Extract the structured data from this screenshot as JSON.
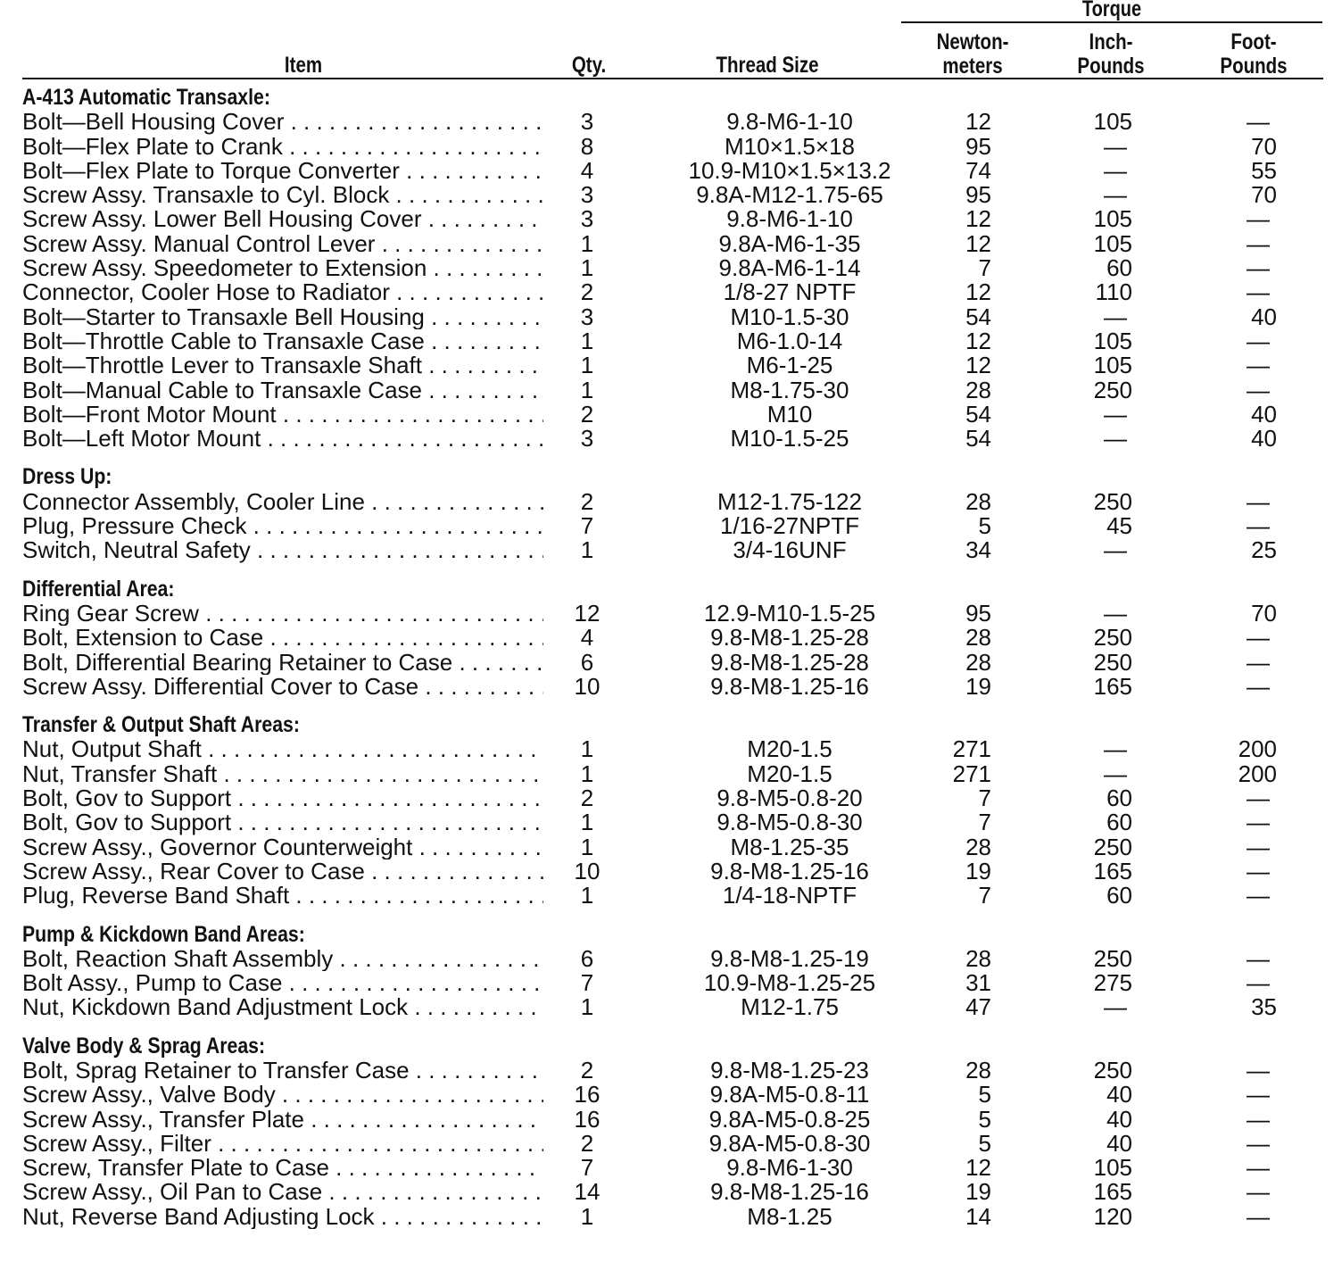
{
  "header": {
    "torque": "Torque",
    "item": "Item",
    "qty": "Qty.",
    "thread": "Thread Size",
    "nm": [
      "Newton-",
      "meters"
    ],
    "in": [
      "Inch-",
      "Pounds"
    ],
    "ft": [
      "Foot-",
      "Pounds"
    ]
  },
  "sections": [
    {
      "title": "A-413 Automatic Transaxle:",
      "rows": [
        [
          "Bolt—Bell Housing Cover",
          "3",
          "9.8-M6-1-10",
          "12",
          "105",
          "—"
        ],
        [
          "Bolt—Flex Plate to Crank",
          "8",
          "M10×1.5×18",
          "95",
          "—",
          "70"
        ],
        [
          "Bolt—Flex Plate to Torque Converter",
          "4",
          "10.9-M10×1.5×13.2",
          "74",
          "—",
          "55"
        ],
        [
          "Screw Assy. Transaxle to Cyl. Block",
          "3",
          "9.8A-M12-1.75-65",
          "95",
          "—",
          "70"
        ],
        [
          "Screw Assy. Lower Bell Housing Cover",
          "3",
          "9.8-M6-1-10",
          "12",
          "105",
          "—"
        ],
        [
          "Screw Assy. Manual Control Lever",
          "1",
          "9.8A-M6-1-35",
          "12",
          "105",
          "—"
        ],
        [
          "Screw Assy. Speedometer to Extension",
          "1",
          "9.8A-M6-1-14",
          "7",
          "60",
          "—"
        ],
        [
          "Connector, Cooler Hose to Radiator",
          "2",
          "1/8-27 NPTF",
          "12",
          "110",
          "—"
        ],
        [
          "Bolt—Starter to Transaxle Bell Housing",
          "3",
          "M10-1.5-30",
          "54",
          "—",
          "40"
        ],
        [
          "Bolt—Throttle Cable to Transaxle Case",
          "1",
          "M6-1.0-14",
          "12",
          "105",
          "—"
        ],
        [
          "Bolt—Throttle Lever to Transaxle Shaft",
          "1",
          "M6-1-25",
          "12",
          "105",
          "—"
        ],
        [
          "Bolt—Manual Cable to Transaxle Case",
          "1",
          "M8-1.75-30",
          "28",
          "250",
          "—"
        ],
        [
          "Bolt—Front Motor Mount",
          "2",
          "M10",
          "54",
          "—",
          "40"
        ],
        [
          "Bolt—Left Motor Mount",
          "3",
          "M10-1.5-25",
          "54",
          "—",
          "40"
        ]
      ]
    },
    {
      "title": "Dress Up:",
      "rows": [
        [
          "Connector Assembly, Cooler Line",
          "2",
          "M12-1.75-122",
          "28",
          "250",
          "—"
        ],
        [
          "Plug, Pressure Check",
          "7",
          "1/16-27NPTF",
          "5",
          "45",
          "—"
        ],
        [
          "Switch, Neutral Safety",
          "1",
          "3/4-16UNF",
          "34",
          "—",
          "25"
        ]
      ]
    },
    {
      "title": "Differential Area:",
      "rows": [
        [
          "Ring Gear Screw",
          "12",
          "12.9-M10-1.5-25",
          "95",
          "—",
          "70"
        ],
        [
          "Bolt, Extension to Case",
          "4",
          "9.8-M8-1.25-28",
          "28",
          "250",
          "—"
        ],
        [
          "Bolt, Differential Bearing Retainer to Case",
          "6",
          "9.8-M8-1.25-28",
          "28",
          "250",
          "—"
        ],
        [
          "Screw Assy. Differential Cover to Case",
          "10",
          "9.8-M8-1.25-16",
          "19",
          "165",
          "—"
        ]
      ]
    },
    {
      "title": "Transfer & Output Shaft Areas:",
      "rows": [
        [
          "Nut, Output Shaft",
          "1",
          "M20-1.5",
          "271",
          "—",
          "200"
        ],
        [
          "Nut, Transfer Shaft",
          "1",
          "M20-1.5",
          "271",
          "—",
          "200"
        ],
        [
          "Bolt, Gov to Support",
          "2",
          "9.8-M5-0.8-20",
          "7",
          "60",
          "—"
        ],
        [
          "Bolt, Gov to Support",
          "1",
          "9.8-M5-0.8-30",
          "7",
          "60",
          "—"
        ],
        [
          "Screw Assy., Governor Counterweight",
          "1",
          "M8-1.25-35",
          "28",
          "250",
          "—"
        ],
        [
          "Screw Assy., Rear Cover to Case",
          "10",
          "9.8-M8-1.25-16",
          "19",
          "165",
          "—"
        ],
        [
          "Plug, Reverse Band Shaft",
          "1",
          "1/4-18-NPTF",
          "7",
          "60",
          "—"
        ]
      ]
    },
    {
      "title": "Pump & Kickdown Band Areas:",
      "rows": [
        [
          "Bolt, Reaction Shaft Assembly",
          "6",
          "9.8-M8-1.25-19",
          "28",
          "250",
          "—"
        ],
        [
          "Bolt Assy., Pump to Case",
          "7",
          "10.9-M8-1.25-25",
          "31",
          "275",
          "—"
        ],
        [
          "Nut, Kickdown Band Adjustment Lock",
          "1",
          "M12-1.75",
          "47",
          "—",
          "35"
        ]
      ]
    },
    {
      "title": "Valve Body & Sprag Areas:",
      "rows": [
        [
          "Bolt, Sprag Retainer to Transfer Case",
          "2",
          "9.8-M8-1.25-23",
          "28",
          "250",
          "—"
        ],
        [
          "Screw Assy., Valve Body",
          "16",
          "9.8A-M5-0.8-11",
          "5",
          "40",
          "—"
        ],
        [
          "Screw Assy., Transfer Plate",
          "16",
          "9.8A-M5-0.8-25",
          "5",
          "40",
          "—"
        ],
        [
          "Screw Assy., Filter",
          "2",
          "9.8A-M5-0.8-30",
          "5",
          "40",
          "—"
        ],
        [
          "Screw, Transfer Plate to Case",
          "7",
          "9.8-M6-1-30",
          "12",
          "105",
          "—"
        ],
        [
          "Screw Assy., Oil Pan to Case",
          "14",
          "9.8-M8-1.25-16",
          "19",
          "165",
          "—"
        ],
        [
          "Nut, Reverse Band Adjusting Lock",
          "1",
          "M8-1.25",
          "14",
          "120",
          "—"
        ]
      ]
    }
  ]
}
